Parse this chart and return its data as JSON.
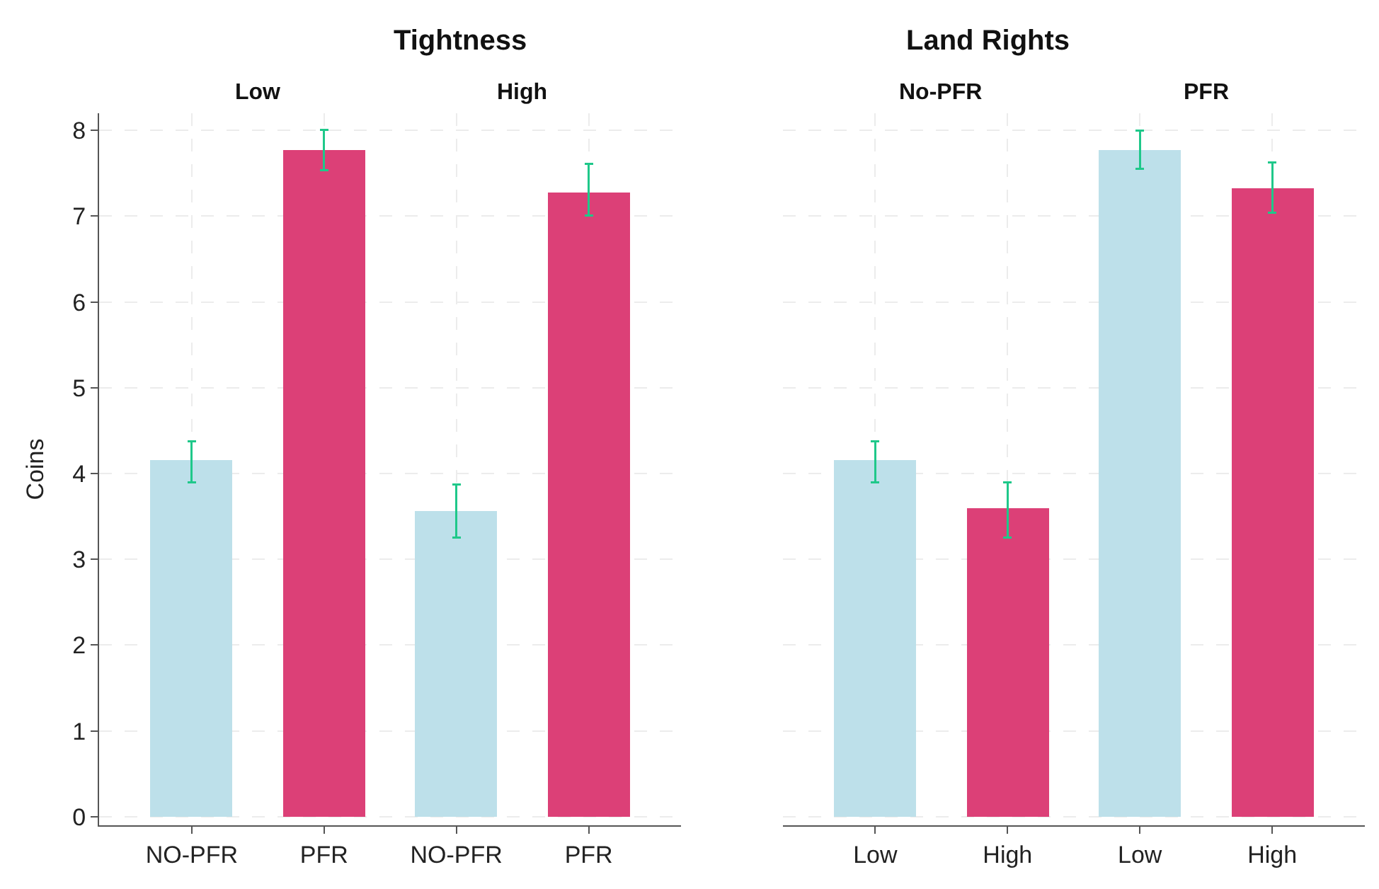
{
  "chart_data": [
    {
      "type": "bar",
      "title": "Tightness",
      "ylabel": "Coins",
      "annotations": [
        "Low",
        "High"
      ],
      "categories": [
        "NO-PFR",
        "PFR",
        "NO-PFR",
        "PFR"
      ],
      "values": [
        4.15,
        7.77,
        3.56,
        7.28
      ],
      "colors": [
        "#bde0ea",
        "#dc4077",
        "#bde0ea",
        "#dc4077"
      ],
      "errors": [
        [
          3.9,
          4.38
        ],
        [
          7.54,
          8.01
        ],
        [
          3.25,
          3.87
        ],
        [
          7.01,
          7.61
        ]
      ],
      "ylim": [
        -0.1,
        8.2
      ],
      "yticks": [
        0,
        1,
        2,
        3,
        4,
        5,
        6,
        7,
        8
      ],
      "grid": true
    },
    {
      "type": "bar",
      "title": "Land Rights",
      "annotations": [
        "No-PFR",
        "PFR"
      ],
      "categories": [
        "Low",
        "High",
        "Low",
        "High"
      ],
      "values": [
        4.15,
        3.59,
        7.77,
        7.32
      ],
      "colors": [
        "#bde0ea",
        "#dc4077",
        "#bde0ea",
        "#dc4077"
      ],
      "errors": [
        [
          3.9,
          4.38
        ],
        [
          3.25,
          3.9
        ],
        [
          7.55,
          8.0
        ],
        [
          7.04,
          7.63
        ]
      ],
      "ylim": [
        -0.1,
        8.2
      ],
      "yticks": [
        0,
        1,
        2,
        3,
        4,
        5,
        6,
        7,
        8
      ],
      "grid": true,
      "tick_labels": "x"
    }
  ]
}
